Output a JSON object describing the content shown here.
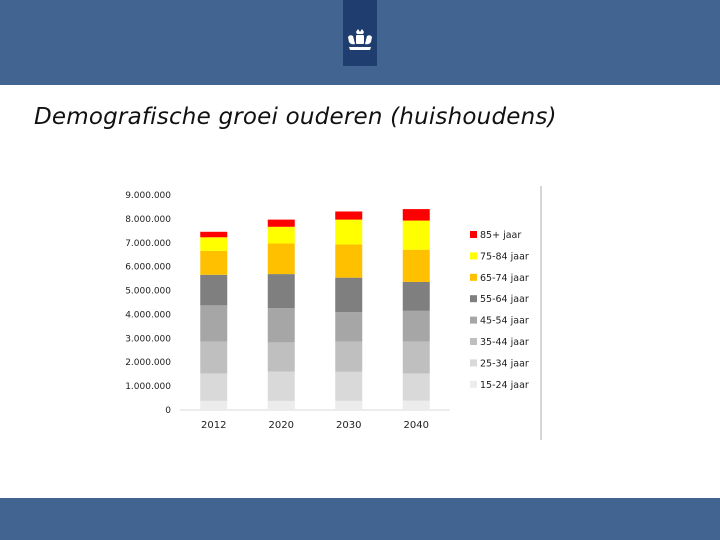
{
  "slide": {
    "title": "Demografische groei ouderen (huishoudens)"
  },
  "colors": {
    "header_band": "#416490",
    "logo_background": "#1f3d6e",
    "footer_band": "#416490"
  },
  "icons": {
    "logo": "royal-coat-of-arms-icon"
  },
  "chart_data": {
    "type": "bar",
    "stacked": true,
    "categories": [
      "2012",
      "2020",
      "2030",
      "2040"
    ],
    "ylim": [
      0,
      9000000
    ],
    "yticks": [
      0,
      1000000,
      2000000,
      3000000,
      4000000,
      5000000,
      6000000,
      7000000,
      8000000,
      9000000
    ],
    "ytick_labels": [
      "0",
      "1.000.000",
      "2.000.000",
      "3.000.000",
      "4.000.000",
      "5.000.000",
      "6.000.000",
      "7.000.000",
      "8.000.000",
      "9.000.000"
    ],
    "grid": false,
    "legend_position": "right",
    "title": "",
    "xlabel": "",
    "ylabel": "",
    "series": [
      {
        "name": "15-24 jaar",
        "color": "#ececec",
        "values": [
          380000,
          380000,
          380000,
          390000
        ]
      },
      {
        "name": "25-34 jaar",
        "color": "#d9d9d9",
        "values": [
          1150000,
          1230000,
          1220000,
          1140000
        ]
      },
      {
        "name": "35-44 jaar",
        "color": "#bfbfbf",
        "values": [
          1330000,
          1220000,
          1260000,
          1340000
        ]
      },
      {
        "name": "45-54 jaar",
        "color": "#a6a6a6",
        "values": [
          1520000,
          1430000,
          1240000,
          1280000
        ]
      },
      {
        "name": "55-64 jaar",
        "color": "#7f7f7f",
        "values": [
          1280000,
          1430000,
          1440000,
          1210000
        ]
      },
      {
        "name": "65-74 jaar",
        "color": "#ffc000",
        "values": [
          1000000,
          1280000,
          1390000,
          1350000
        ]
      },
      {
        "name": "75-84 jaar",
        "color": "#ffff00",
        "values": [
          570000,
          700000,
          1040000,
          1220000
        ]
      },
      {
        "name": "85+ jaar",
        "color": "#ff0000",
        "values": [
          230000,
          300000,
          340000,
          480000
        ]
      }
    ]
  }
}
